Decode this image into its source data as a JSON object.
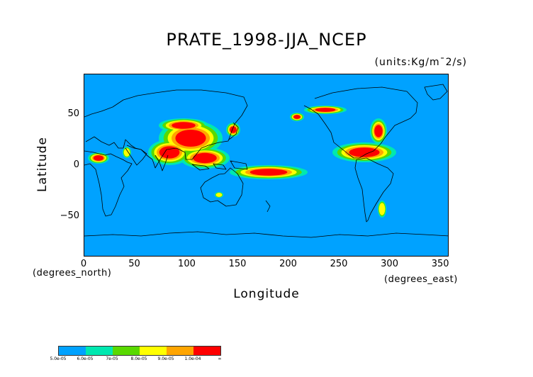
{
  "title": "PRATE_1998-JJA_NCEP",
  "units": "(units:Kg/m¯2/s)",
  "axes": {
    "ylabel": "Latitude",
    "xlabel": "Longitude",
    "x_units": "(degrees_north)",
    "x_units2": "(degrees_east)",
    "x_ticks": [
      "0",
      "50",
      "100",
      "150",
      "200",
      "250",
      "300",
      "350"
    ],
    "y_ticks": [
      "50",
      "0",
      "−50"
    ]
  },
  "colorbar": {
    "colors": [
      "#00a2ff",
      "#00e8b0",
      "#59d900",
      "#ffff00",
      "#ffa500",
      "#ff0000"
    ],
    "labels": [
      "5.0e-05",
      "6.0e-05",
      "7e-05",
      "8.0e-05",
      "9.0e-05",
      "1.0e-04",
      "∞"
    ]
  },
  "chart_data": {
    "type": "heatmap",
    "title": "PRATE_1998-JJA_NCEP",
    "xlabel": "Longitude",
    "ylabel": "Latitude",
    "xlim": [
      0,
      360
    ],
    "ylim": [
      -90,
      90
    ],
    "x_ticks": [
      0,
      50,
      100,
      150,
      200,
      250,
      300,
      350
    ],
    "y_ticks": [
      50,
      0,
      -50
    ],
    "levels": [
      5e-05,
      6e-05,
      7e-05,
      8e-05,
      9e-05,
      0.0001
    ]
  }
}
